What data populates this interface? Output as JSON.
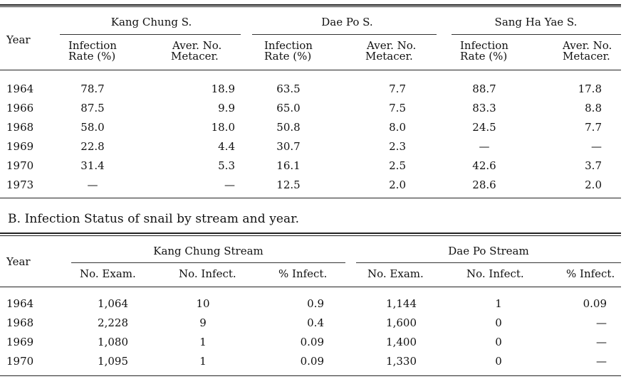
{
  "table_a": {
    "year_header": "Year",
    "groups": [
      "Kang Chung S.",
      "Dae Po S.",
      "Sang Ha Yae S."
    ],
    "sub_headers": [
      {
        "line1": "Infection",
        "line2": "Rate (%)"
      },
      {
        "line1": "Aver. No.",
        "line2": "Metacer."
      },
      {
        "line1": "Infection",
        "line2": "Rate (%)"
      },
      {
        "line1": "Aver. No.",
        "line2": "Metacer."
      },
      {
        "line1": "Infection",
        "line2": "Rate (%)"
      },
      {
        "line1": "Aver. No.",
        "line2": "Metacer."
      }
    ],
    "rows": [
      [
        "1964",
        "78.7",
        "18.9",
        "63.5",
        "7.7",
        "88.7",
        "17.8"
      ],
      [
        "1966",
        "87.5",
        "9.9",
        "65.0",
        "7.5",
        "83.3",
        "8.8"
      ],
      [
        "1968",
        "58.0",
        "18.0",
        "50.8",
        "8.0",
        "24.5",
        "7.7"
      ],
      [
        "1969",
        "22.8",
        "4.4",
        "30.7",
        "2.3",
        "—",
        "—"
      ],
      [
        "1970",
        "31.4",
        "5.3",
        "16.1",
        "2.5",
        "42.6",
        "3.7"
      ],
      [
        "1973",
        "—",
        "—",
        "12.5",
        "2.0",
        "28.6",
        "2.0"
      ]
    ]
  },
  "table_b": {
    "caption": "B. Infection Status of snail by stream and year.",
    "year_header": "Year",
    "groups": [
      "Kang Chung Stream",
      "Dae Po Stream"
    ],
    "sub_headers": [
      "No. Exam.",
      "No. Infect.",
      "% Infect.",
      "No. Exam.",
      "No. Infect.",
      "% Infect."
    ],
    "rows": [
      [
        "1964",
        "1,064",
        "10",
        "0.9",
        "1,144",
        "1",
        "0.09"
      ],
      [
        "1968",
        "2,228",
        "9",
        "0.4",
        "1,600",
        "0",
        "—"
      ],
      [
        "1969",
        "1,080",
        "1",
        "0.09",
        "1,400",
        "0",
        "—"
      ],
      [
        "1970",
        "1,095",
        "1",
        "0.09",
        "1,330",
        "0",
        "—"
      ]
    ]
  }
}
